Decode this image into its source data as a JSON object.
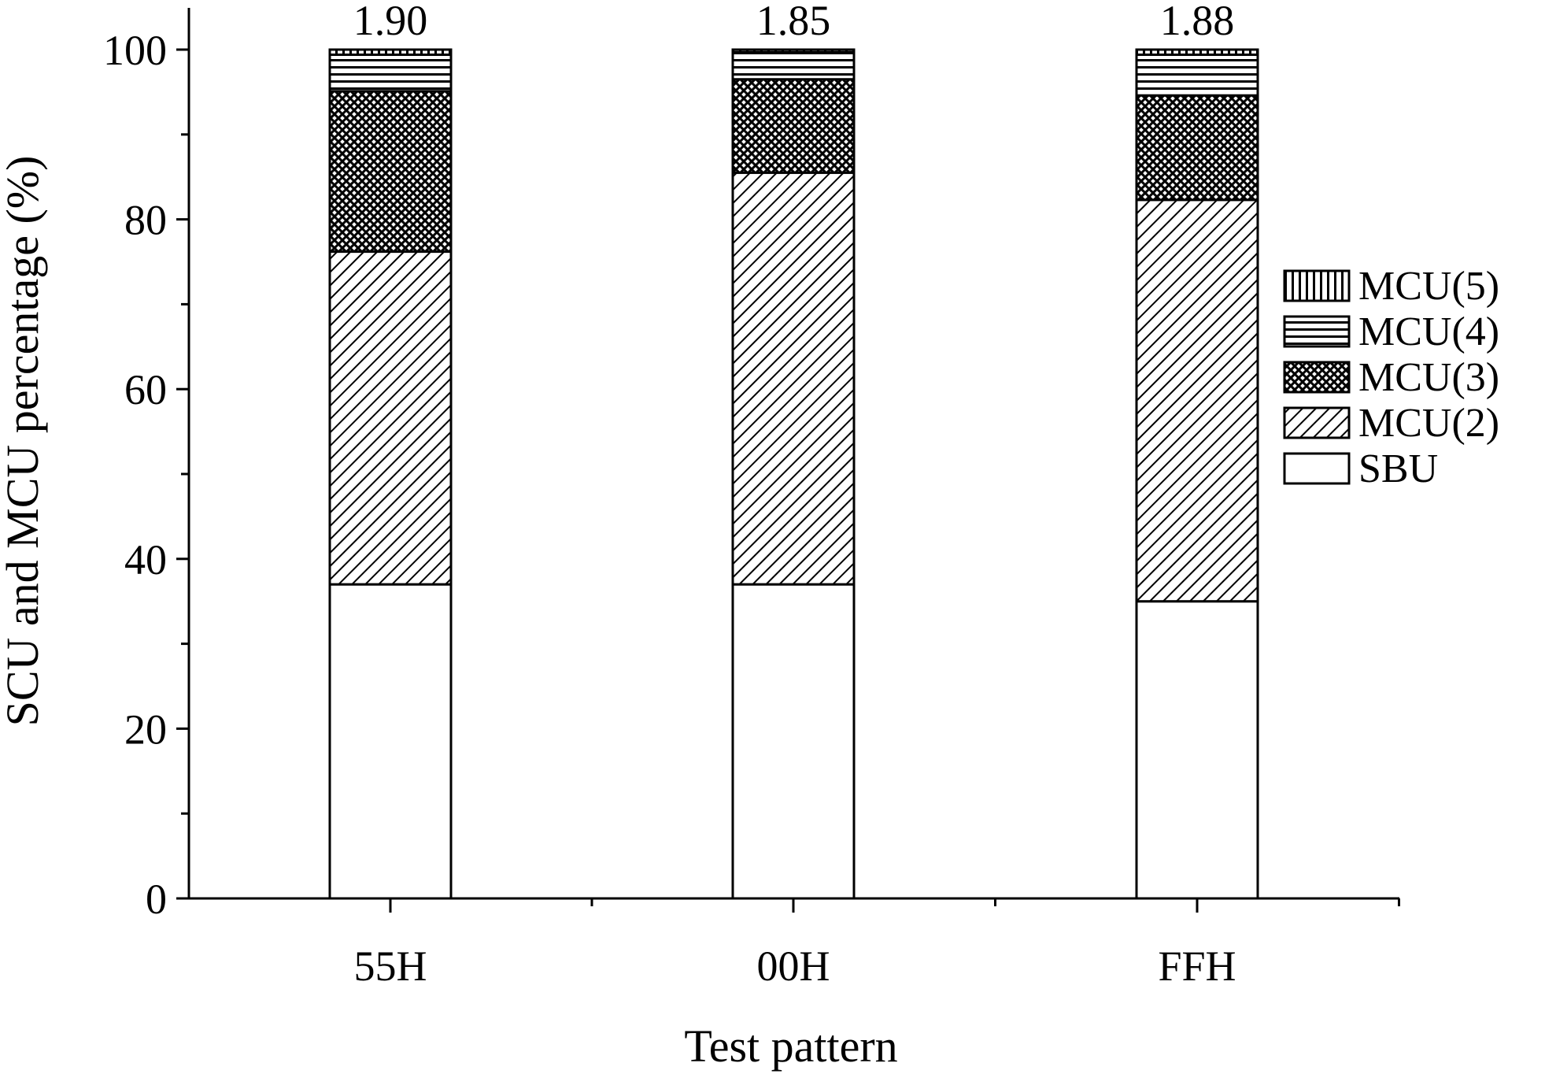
{
  "chart_data": {
    "type": "bar",
    "stacked": true,
    "categories": [
      "55H",
      "00H",
      "FFH"
    ],
    "series": [
      {
        "name": "SBU",
        "pattern": "none",
        "values": [
          37.0,
          37.0,
          35.0
        ]
      },
      {
        "name": "MCU(2)",
        "pattern": "diagonal",
        "values": [
          39.2,
          48.5,
          47.3
        ]
      },
      {
        "name": "MCU(3)",
        "pattern": "crosshatch",
        "values": [
          18.9,
          11.0,
          12.3
        ]
      },
      {
        "name": "MCU(4)",
        "pattern": "horizontal",
        "values": [
          4.3,
          3.2,
          4.8
        ]
      },
      {
        "name": "MCU(5)",
        "pattern": "vertical",
        "values": [
          0.6,
          0.3,
          0.6
        ]
      }
    ],
    "bar_top_labels": [
      "1.90",
      "1.85",
      "1.88"
    ],
    "xlabel": "Test pattern",
    "ylabel": "SCU and MCU percentage (%)",
    "ylim": [
      0,
      100
    ],
    "yticks": [
      "0",
      "20",
      "40",
      "60",
      "80",
      "100"
    ],
    "grid": false,
    "legend_position": "right",
    "legend_order": [
      "MCU(5)",
      "MCU(4)",
      "MCU(3)",
      "MCU(2)",
      "SBU"
    ],
    "colors": {
      "stroke": "#000000",
      "fill": "#ffffff"
    }
  }
}
